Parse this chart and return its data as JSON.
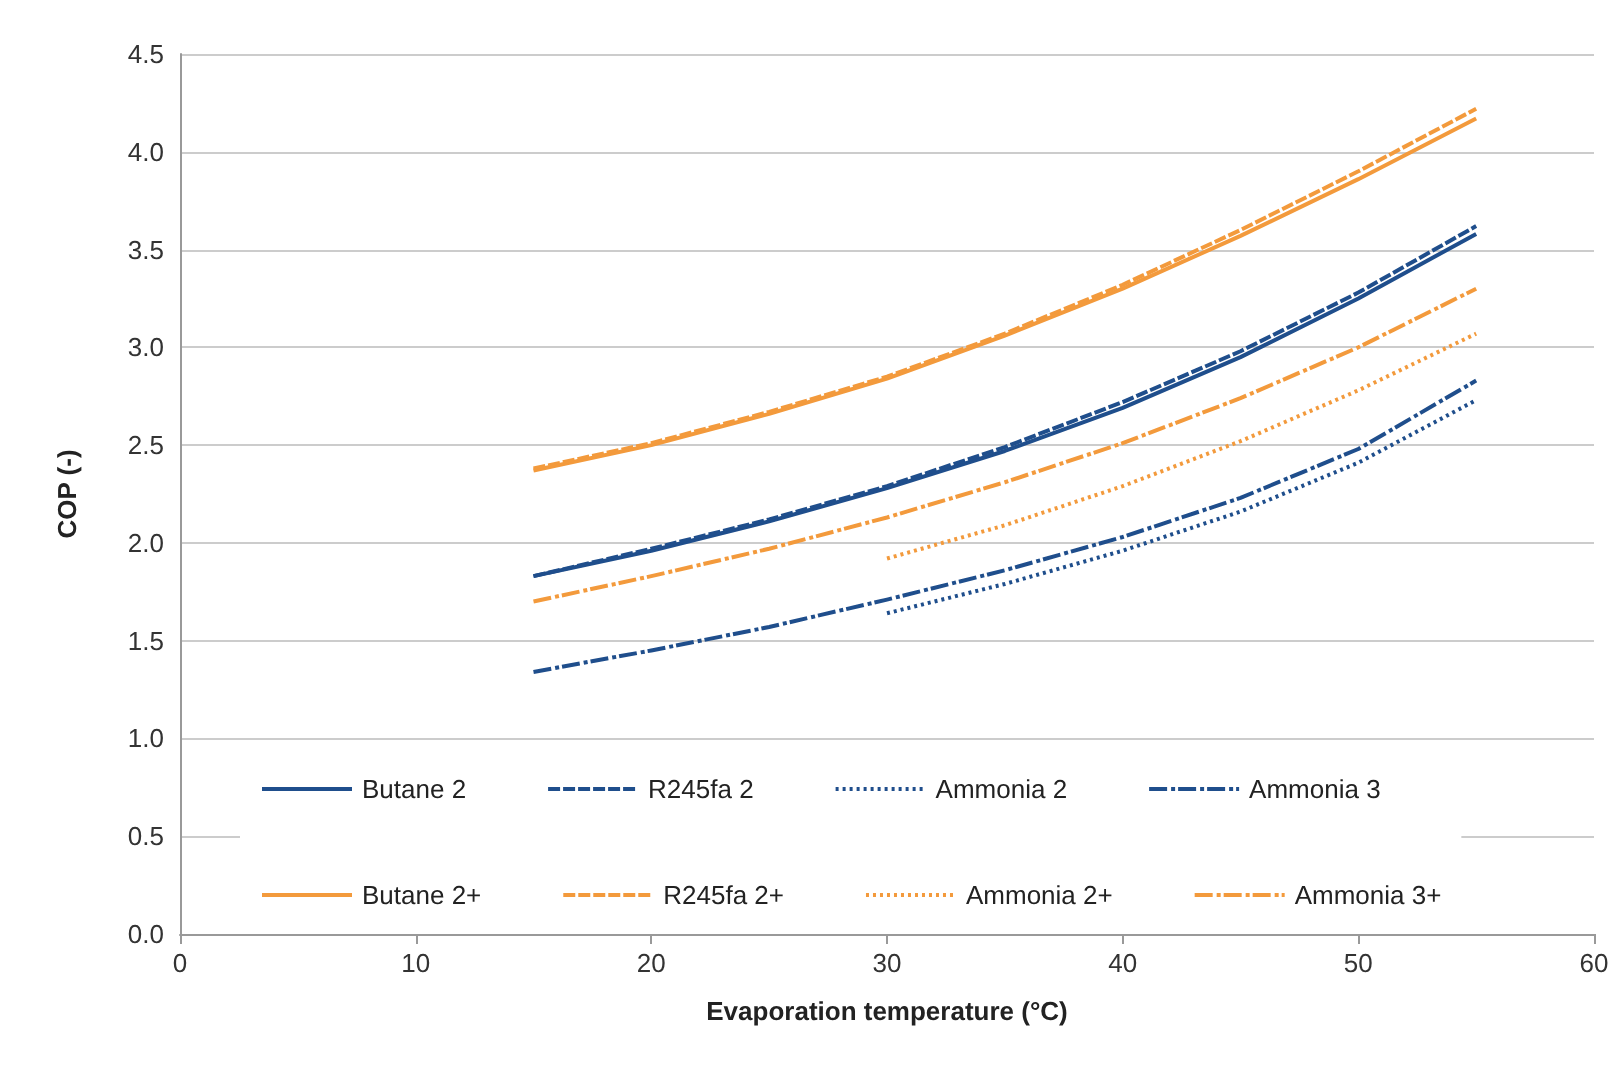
{
  "chart_data": {
    "type": "line",
    "xlabel": "Evaporation temperature (°C)",
    "ylabel": "COP (-)",
    "xlim": [
      0,
      60
    ],
    "xticks": [
      0,
      10,
      20,
      30,
      40,
      50,
      60
    ],
    "ylim": [
      0,
      4.5
    ],
    "yticks": [
      {
        "value": 0,
        "label": "0.0"
      },
      0.5,
      {
        "value": 1,
        "label": "1.0"
      },
      1.5,
      {
        "value": 2,
        "label": "2.0"
      },
      2.5,
      {
        "value": 3,
        "label": "3.0"
      },
      3.5,
      {
        "value": 4,
        "label": "4.0"
      },
      4.5
    ],
    "grid": "y",
    "legend": "bottom",
    "marker": "none",
    "series": [
      {
        "name": "Butane 2",
        "color": "#1f4e8c",
        "line_style": "solid",
        "x": [
          15,
          20,
          25,
          30,
          35,
          40,
          45,
          50,
          55
        ],
        "values": [
          1.83,
          1.96,
          2.11,
          2.28,
          2.47,
          2.69,
          2.95,
          3.25,
          3.58
        ]
      },
      {
        "name": "R245fa 2",
        "color": "#1f4e8c",
        "line_style": "dashed",
        "x": [
          15,
          20,
          25,
          30,
          35,
          40,
          45,
          50,
          55
        ],
        "values": [
          1.83,
          1.97,
          2.12,
          2.29,
          2.49,
          2.72,
          2.98,
          3.28,
          3.62
        ]
      },
      {
        "name": "Ammonia 2",
        "color": "#1f4e8c",
        "line_style": "dotted",
        "x": [
          30,
          35,
          40,
          45,
          50,
          55
        ],
        "values": [
          1.64,
          1.79,
          1.96,
          2.16,
          2.41,
          2.73
        ]
      },
      {
        "name": "Ammonia 3",
        "color": "#1f4e8c",
        "line_style": "dashdot",
        "x": [
          15,
          20,
          25,
          30,
          35,
          40,
          45,
          50,
          55
        ],
        "values": [
          1.34,
          1.45,
          1.57,
          1.71,
          1.86,
          2.03,
          2.23,
          2.48,
          2.83
        ]
      },
      {
        "name": "Butane 2+",
        "color": "#f39a3c",
        "line_style": "solid",
        "x": [
          15,
          20,
          25,
          30,
          35,
          40,
          45,
          50,
          55
        ],
        "values": [
          2.37,
          2.5,
          2.66,
          2.84,
          3.06,
          3.3,
          3.57,
          3.86,
          4.17
        ]
      },
      {
        "name": "R245fa 2+",
        "color": "#f39a3c",
        "line_style": "dashed",
        "x": [
          15,
          20,
          25,
          30,
          35,
          40,
          45,
          50,
          55
        ],
        "values": [
          2.38,
          2.51,
          2.67,
          2.85,
          3.07,
          3.32,
          3.6,
          3.9,
          4.22
        ]
      },
      {
        "name": "Ammonia 2+",
        "color": "#f39a3c",
        "line_style": "dotted",
        "x": [
          30,
          35,
          40,
          45,
          50,
          55
        ],
        "values": [
          1.92,
          2.09,
          2.29,
          2.52,
          2.78,
          3.07
        ]
      },
      {
        "name": "Ammonia 3+",
        "color": "#f39a3c",
        "line_style": "dashdot",
        "x": [
          15,
          20,
          25,
          30,
          35,
          40,
          45,
          50,
          55
        ],
        "values": [
          1.7,
          1.83,
          1.97,
          2.13,
          2.31,
          2.51,
          2.74,
          3.0,
          3.3
        ]
      }
    ]
  }
}
